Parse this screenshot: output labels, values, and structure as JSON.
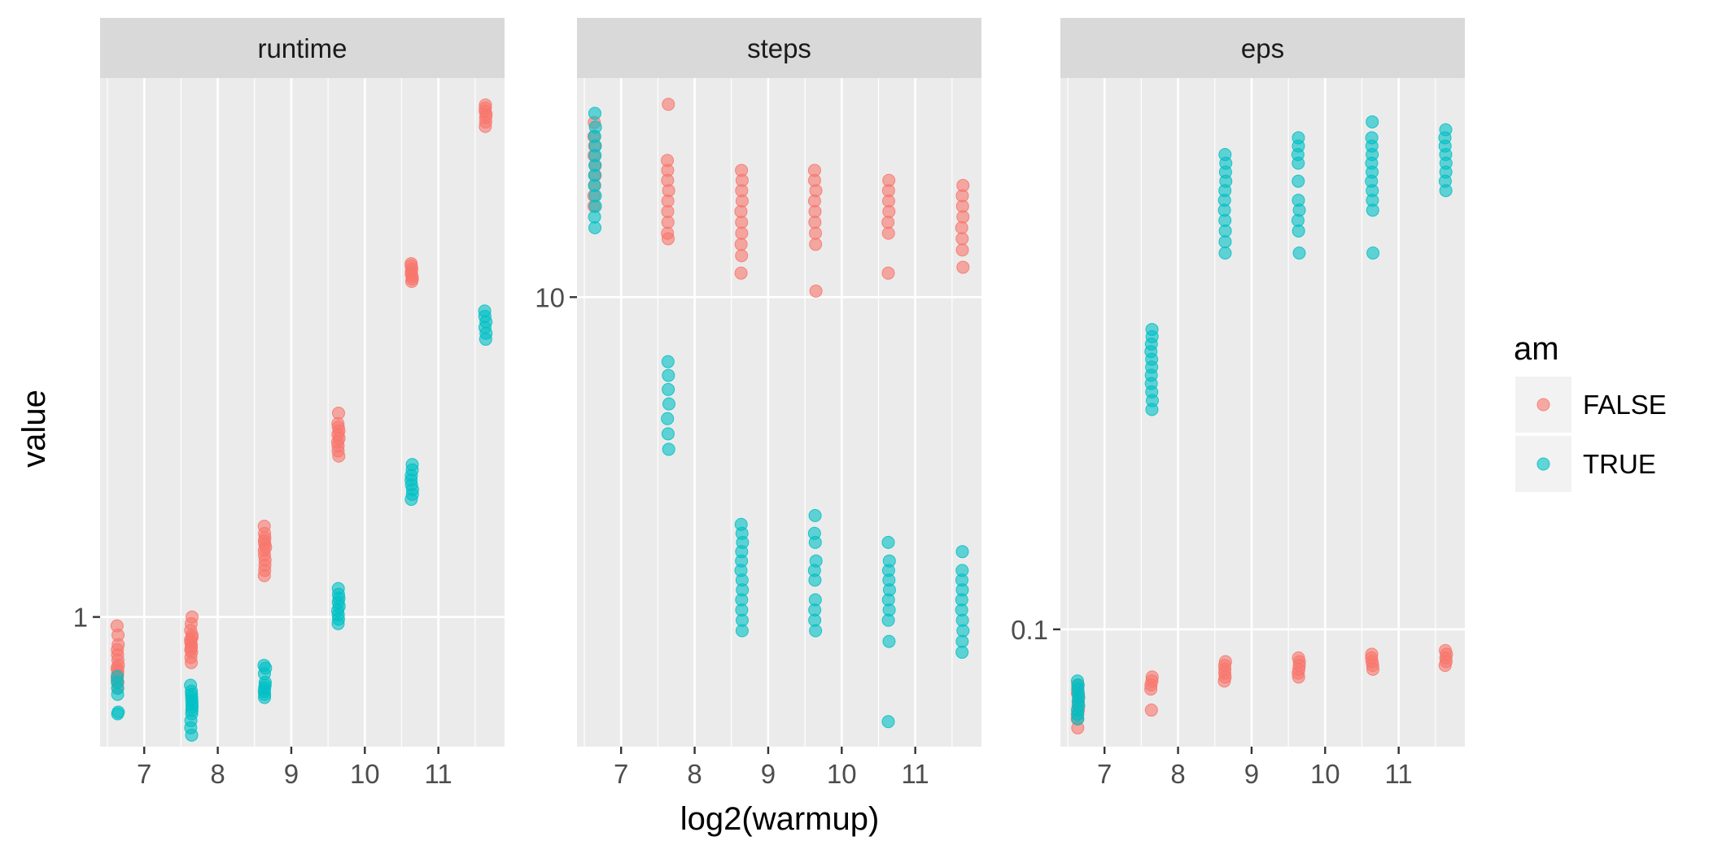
{
  "chart_data": {
    "type": "scatter",
    "xlabel": "log2(warmup)",
    "ylabel": "value",
    "legend": {
      "title": "am",
      "position": "right",
      "entries": [
        {
          "label": "FALSE",
          "color": "#F8766D"
        },
        {
          "label": "TRUE",
          "color": "#00BFC4"
        }
      ]
    },
    "grid": true,
    "x_ticks": [
      "7",
      "8",
      "9",
      "10",
      "11"
    ],
    "x_tick_values": [
      7,
      8,
      9,
      10,
      11
    ],
    "xlim": [
      6.4,
      11.9
    ],
    "panels": [
      {
        "name": "runtime",
        "y_scale": "log",
        "ylim": [
          0.55,
          12.0
        ],
        "y_ticks": [
          {
            "label": "1",
            "value": 1
          }
        ],
        "series": [
          {
            "name": "FALSE",
            "color": "#F8766D",
            "groups": [
              {
                "x": 6.64,
                "values": [
                  0.72,
                  0.74,
                  0.75,
                  0.76,
                  0.77,
                  0.78,
                  0.79,
                  0.8,
                  0.82,
                  0.84,
                  0.86,
                  0.88,
                  0.92,
                  0.96
                ]
              },
              {
                "x": 7.64,
                "values": [
                  0.81,
                  0.83,
                  0.85,
                  0.86,
                  0.87,
                  0.88,
                  0.89,
                  0.9,
                  0.91,
                  0.92,
                  0.94,
                  0.97,
                  1.0
                ]
              },
              {
                "x": 8.64,
                "values": [
                  1.21,
                  1.24,
                  1.27,
                  1.3,
                  1.33,
                  1.36,
                  1.38,
                  1.4,
                  1.42,
                  1.44,
                  1.47,
                  1.52
                ]
              },
              {
                "x": 9.64,
                "values": [
                  2.1,
                  2.15,
                  2.2,
                  2.24,
                  2.28,
                  2.32,
                  2.36,
                  2.4,
                  2.44,
                  2.56
                ]
              },
              {
                "x": 10.64,
                "values": [
                  4.7,
                  4.75,
                  4.8,
                  4.86,
                  4.92,
                  4.98,
                  5.05,
                  5.1
                ]
              },
              {
                "x": 11.64,
                "values": [
                  9.6,
                  9.8,
                  10.0,
                  10.15,
                  10.3,
                  10.45,
                  10.6
                ]
              }
            ]
          },
          {
            "name": "TRUE",
            "color": "#00BFC4",
            "groups": [
              {
                "x": 6.64,
                "values": [
                  0.64,
                  0.645,
                  0.7,
                  0.72,
                  0.74,
                  0.76
                ]
              },
              {
                "x": 7.64,
                "values": [
                  0.58,
                  0.6,
                  0.62,
                  0.64,
                  0.65,
                  0.66,
                  0.67,
                  0.68,
                  0.69,
                  0.7,
                  0.71,
                  0.73
                ]
              },
              {
                "x": 8.64,
                "values": [
                  0.69,
                  0.7,
                  0.71,
                  0.72,
                  0.73,
                  0.74,
                  0.77,
                  0.79,
                  0.8
                ]
              },
              {
                "x": 9.64,
                "values": [
                  0.97,
                  0.99,
                  1.01,
                  1.03,
                  1.05,
                  1.07,
                  1.09,
                  1.11,
                  1.14
                ]
              },
              {
                "x": 10.64,
                "values": [
                  1.72,
                  1.76,
                  1.8,
                  1.84,
                  1.88,
                  1.92,
                  1.97,
                  2.02
                ]
              },
              {
                "x": 11.64,
                "values": [
                  3.6,
                  3.7,
                  3.8,
                  3.9,
                  4.0,
                  4.1
                ]
              }
            ]
          }
        ]
      },
      {
        "name": "steps",
        "y_scale": "log",
        "ylim": [
          4.8,
          14.3
        ],
        "y_ticks": [
          {
            "label": "10",
            "value": 10
          }
        ],
        "series": [
          {
            "name": "FALSE",
            "color": "#F8766D",
            "groups": [
              {
                "x": 6.64,
                "values": [
                  11.6,
                  11.8,
                  12.0,
                  12.2,
                  12.4,
                  12.6,
                  12.8,
                  13.0,
                  13.3
                ]
              },
              {
                "x": 7.64,
                "values": [
                  11.0,
                  11.1,
                  11.3,
                  11.5,
                  11.7,
                  11.9,
                  12.1,
                  12.3,
                  12.5,
                  13.7
                ]
              },
              {
                "x": 8.64,
                "values": [
                  10.4,
                  10.7,
                  10.9,
                  11.1,
                  11.3,
                  11.5,
                  11.7,
                  11.9,
                  12.1,
                  12.3
                ]
              },
              {
                "x": 9.64,
                "values": [
                  10.1,
                  10.9,
                  11.1,
                  11.3,
                  11.5,
                  11.7,
                  11.9,
                  12.1,
                  12.3
                ]
              },
              {
                "x": 10.64,
                "values": [
                  10.4,
                  11.1,
                  11.3,
                  11.5,
                  11.7,
                  11.9,
                  12.1
                ]
              },
              {
                "x": 11.64,
                "values": [
                  10.5,
                  10.8,
                  11.0,
                  11.2,
                  11.4,
                  11.6,
                  11.8,
                  12.0
                ]
              }
            ]
          },
          {
            "name": "TRUE",
            "color": "#00BFC4",
            "groups": [
              {
                "x": 6.64,
                "values": [
                  11.2,
                  11.4,
                  11.6,
                  11.8,
                  12.0,
                  12.2,
                  12.4,
                  12.6,
                  12.8,
                  13.0,
                  13.2,
                  13.5
                ]
              },
              {
                "x": 7.64,
                "values": [
                  7.8,
                  8.0,
                  8.2,
                  8.4,
                  8.6,
                  8.8,
                  9.0
                ]
              },
              {
                "x": 8.64,
                "values": [
                  5.8,
                  5.9,
                  6.0,
                  6.1,
                  6.2,
                  6.3,
                  6.4,
                  6.5,
                  6.6,
                  6.7,
                  6.8,
                  6.9
                ]
              },
              {
                "x": 9.64,
                "values": [
                  5.8,
                  5.9,
                  6.0,
                  6.1,
                  6.3,
                  6.4,
                  6.5,
                  6.7,
                  6.8,
                  7.0
                ]
              },
              {
                "x": 10.64,
                "values": [
                  5.0,
                  5.7,
                  5.9,
                  6.0,
                  6.1,
                  6.2,
                  6.3,
                  6.4,
                  6.5,
                  6.7
                ]
              },
              {
                "x": 11.64,
                "values": [
                  5.6,
                  5.7,
                  5.8,
                  5.9,
                  6.0,
                  6.1,
                  6.2,
                  6.3,
                  6.4,
                  6.6
                ]
              }
            ]
          }
        ]
      },
      {
        "name": "eps",
        "y_scale": "log",
        "ylim": [
          0.071,
          0.5
        ],
        "y_ticks": [
          {
            "label": "0.1",
            "value": 0.1
          }
        ],
        "series": [
          {
            "name": "FALSE",
            "color": "#F8766D",
            "groups": [
              {
                "x": 6.64,
                "values": [
                  0.075,
                  0.077,
                  0.078,
                  0.079,
                  0.08,
                  0.081,
                  0.082,
                  0.083,
                  0.084,
                  0.085
                ]
              },
              {
                "x": 7.64,
                "values": [
                  0.079,
                  0.084,
                  0.085,
                  0.086,
                  0.087
                ]
              },
              {
                "x": 8.64,
                "values": [
                  0.086,
                  0.087,
                  0.088,
                  0.089,
                  0.09,
                  0.091
                ]
              },
              {
                "x": 9.64,
                "values": [
                  0.087,
                  0.088,
                  0.089,
                  0.09,
                  0.091,
                  0.092
                ]
              },
              {
                "x": 10.64,
                "values": [
                  0.089,
                  0.09,
                  0.091,
                  0.092,
                  0.093
                ]
              },
              {
                "x": 11.64,
                "values": [
                  0.09,
                  0.091,
                  0.092,
                  0.093,
                  0.094
                ]
              }
            ]
          },
          {
            "name": "TRUE",
            "color": "#00BFC4",
            "groups": [
              {
                "x": 6.64,
                "values": [
                  0.077,
                  0.078,
                  0.079,
                  0.08,
                  0.081,
                  0.082,
                  0.083,
                  0.084,
                  0.085,
                  0.086
                ]
              },
              {
                "x": 7.64,
                "values": [
                  0.19,
                  0.195,
                  0.2,
                  0.205,
                  0.21,
                  0.215,
                  0.22,
                  0.225,
                  0.23,
                  0.235,
                  0.24
                ]
              },
              {
                "x": 8.64,
                "values": [
                  0.3,
                  0.31,
                  0.32,
                  0.33,
                  0.34,
                  0.35,
                  0.36,
                  0.37,
                  0.38,
                  0.39,
                  0.4
                ]
              },
              {
                "x": 9.64,
                "values": [
                  0.3,
                  0.32,
                  0.33,
                  0.34,
                  0.35,
                  0.37,
                  0.39,
                  0.4,
                  0.41,
                  0.42
                ]
              },
              {
                "x": 10.64,
                "values": [
                  0.3,
                  0.34,
                  0.35,
                  0.36,
                  0.37,
                  0.38,
                  0.39,
                  0.4,
                  0.41,
                  0.42,
                  0.44
                ]
              },
              {
                "x": 11.64,
                "values": [
                  0.36,
                  0.37,
                  0.38,
                  0.39,
                  0.4,
                  0.41,
                  0.42,
                  0.43
                ]
              }
            ]
          }
        ]
      }
    ]
  }
}
